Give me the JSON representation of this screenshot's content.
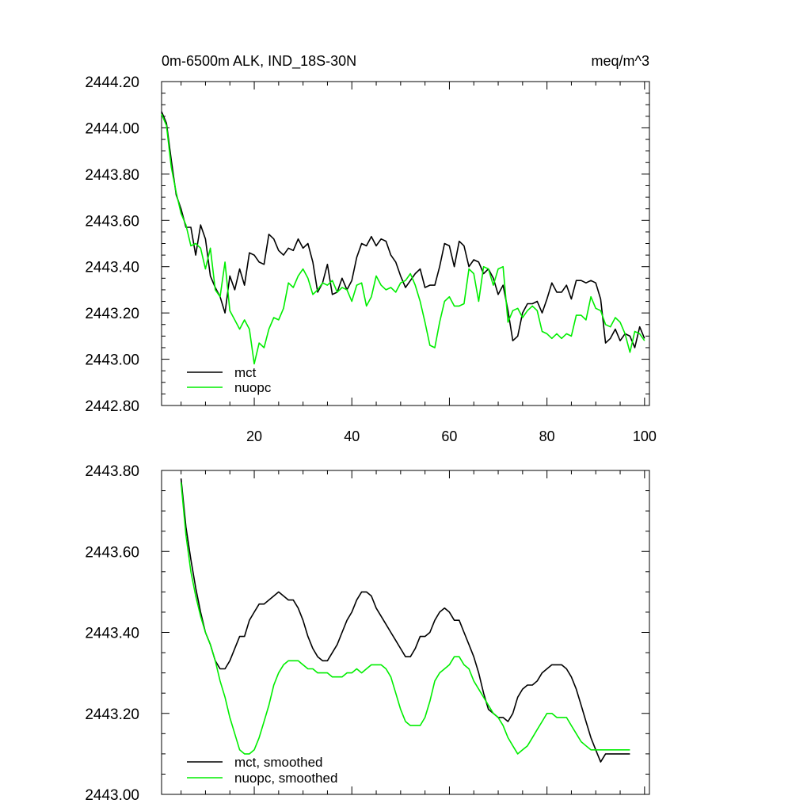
{
  "chart_data": [
    {
      "type": "line",
      "title_left": "0m-6500m ALK, IND_18S-30N",
      "title_right": "meq/m^3",
      "xlim": [
        1,
        101
      ],
      "ylim": [
        2442.8,
        2444.2
      ],
      "x_ticks": [
        20,
        40,
        60,
        80,
        100
      ],
      "y_ticks": [
        2442.8,
        2443.0,
        2443.2,
        2443.4,
        2443.6,
        2443.8,
        2444.0,
        2444.2
      ],
      "y_tick_labels": [
        "2442.80",
        "2443.00",
        "2443.20",
        "2443.40",
        "2443.60",
        "2443.80",
        "2444.00",
        "2444.20"
      ],
      "show_x_tick_labels": true,
      "legend_position": "bottom-left",
      "series": [
        {
          "name": "mct",
          "color": "#000000",
          "values": [
            2444.07,
            2444.02,
            2443.86,
            2443.71,
            2443.65,
            2443.57,
            2443.57,
            2443.45,
            2443.58,
            2443.52,
            2443.36,
            2443.31,
            2443.27,
            2443.2,
            2443.36,
            2443.3,
            2443.39,
            2443.32,
            2443.46,
            2443.45,
            2443.42,
            2443.41,
            2443.54,
            2443.52,
            2443.47,
            2443.45,
            2443.48,
            2443.47,
            2443.52,
            2443.48,
            2443.5,
            2443.42,
            2443.29,
            2443.33,
            2443.41,
            2443.28,
            2443.29,
            2443.35,
            2443.3,
            2443.34,
            2443.44,
            2443.5,
            2443.49,
            2443.53,
            2443.49,
            2443.52,
            2443.51,
            2443.45,
            2443.42,
            2443.36,
            2443.31,
            2443.34,
            2443.37,
            2443.39,
            2443.31,
            2443.32,
            2443.32,
            2443.4,
            2443.5,
            2443.49,
            2443.4,
            2443.51,
            2443.49,
            2443.4,
            2443.43,
            2443.42,
            2443.37,
            2443.39,
            2443.35,
            2443.28,
            2443.32,
            2443.21,
            2443.08,
            2443.1,
            2443.2,
            2443.24,
            2443.24,
            2443.25,
            2443.2,
            2443.26,
            2443.33,
            2443.29,
            2443.29,
            2443.32,
            2443.26,
            2443.34,
            2443.34,
            2443.33,
            2443.34,
            2443.33,
            2443.26,
            2443.07,
            2443.09,
            2443.13,
            2443.08,
            2443.11,
            2443.1,
            2443.05,
            2443.14,
            2443.09
          ]
        },
        {
          "name": "nuopc",
          "color": "#00ee00",
          "values": [
            2444.06,
            2444.01,
            2443.83,
            2443.72,
            2443.63,
            2443.58,
            2443.49,
            2443.5,
            2443.48,
            2443.39,
            2443.48,
            2443.3,
            2443.27,
            2443.42,
            2443.21,
            2443.17,
            2443.13,
            2443.17,
            2443.13,
            2442.98,
            2443.07,
            2443.05,
            2443.13,
            2443.18,
            2443.17,
            2443.22,
            2443.33,
            2443.31,
            2443.36,
            2443.39,
            2443.35,
            2443.28,
            2443.3,
            2443.33,
            2443.32,
            2443.34,
            2443.29,
            2443.31,
            2443.3,
            2443.25,
            2443.32,
            2443.33,
            2443.23,
            2443.27,
            2443.36,
            2443.32,
            2443.3,
            2443.31,
            2443.29,
            2443.33,
            2443.34,
            2443.37,
            2443.32,
            2443.25,
            2443.16,
            2443.06,
            2443.05,
            2443.16,
            2443.25,
            2443.27,
            2443.23,
            2443.23,
            2443.24,
            2443.39,
            2443.37,
            2443.25,
            2443.4,
            2443.39,
            2443.32,
            2443.39,
            2443.4,
            2443.16,
            2443.21,
            2443.22,
            2443.18,
            2443.21,
            2443.23,
            2443.21,
            2443.12,
            2443.11,
            2443.09,
            2443.11,
            2443.09,
            2443.11,
            2443.1,
            2443.19,
            2443.19,
            2443.17,
            2443.27,
            2443.22,
            2443.21,
            2443.15,
            2443.14,
            2443.18,
            2443.16,
            2443.11,
            2443.03,
            2443.12,
            2443.11,
            2443.08
          ]
        }
      ],
      "legend": [
        {
          "label": "mct",
          "color": "#000000"
        },
        {
          "label": "nuopc",
          "color": "#00ee00"
        }
      ]
    },
    {
      "type": "line",
      "title_left": "",
      "title_right": "",
      "xlim": [
        1,
        101
      ],
      "ylim": [
        2443.0,
        2443.8
      ],
      "x_ticks": [
        20,
        40,
        60,
        80,
        100
      ],
      "y_ticks": [
        2443.0,
        2443.2,
        2443.4,
        2443.6,
        2443.8
      ],
      "y_tick_labels": [
        "2443.00",
        "2443.20",
        "2443.40",
        "2443.60",
        "2443.80"
      ],
      "show_x_tick_labels": false,
      "legend_position": "bottom-left",
      "series": [
        {
          "name": "mct, smoothed",
          "color": "#000000",
          "x": [
            5,
            6,
            7,
            8,
            9,
            10,
            11,
            12,
            13,
            14,
            15,
            16,
            17,
            18,
            19,
            20,
            21,
            22,
            23,
            24,
            25,
            26,
            27,
            28,
            29,
            30,
            31,
            32,
            33,
            34,
            35,
            36,
            37,
            38,
            39,
            40,
            41,
            42,
            43,
            44,
            45,
            46,
            47,
            48,
            49,
            50,
            51,
            52,
            53,
            54,
            55,
            56,
            57,
            58,
            59,
            60,
            61,
            62,
            63,
            64,
            65,
            66,
            67,
            68,
            69,
            70,
            71,
            72,
            73,
            74,
            75,
            76,
            77,
            78,
            79,
            80,
            81,
            82,
            83,
            84,
            85,
            86,
            87,
            88,
            89,
            90,
            91,
            92,
            93,
            94,
            95,
            96,
            97
          ],
          "values": [
            2443.78,
            2443.66,
            2443.58,
            2443.51,
            2443.45,
            2443.4,
            2443.37,
            2443.33,
            2443.31,
            2443.31,
            2443.33,
            2443.36,
            2443.39,
            2443.39,
            2443.43,
            2443.45,
            2443.47,
            2443.47,
            2443.48,
            2443.49,
            2443.5,
            2443.49,
            2443.48,
            2443.48,
            2443.46,
            2443.43,
            2443.39,
            2443.36,
            2443.34,
            2443.33,
            2443.33,
            2443.35,
            2443.37,
            2443.4,
            2443.43,
            2443.45,
            2443.48,
            2443.5,
            2443.5,
            2443.49,
            2443.46,
            2443.44,
            2443.42,
            2443.4,
            2443.38,
            2443.36,
            2443.34,
            2443.34,
            2443.36,
            2443.39,
            2443.39,
            2443.4,
            2443.43,
            2443.45,
            2443.46,
            2443.45,
            2443.43,
            2443.43,
            2443.4,
            2443.37,
            2443.34,
            2443.3,
            2443.25,
            2443.21,
            2443.2,
            2443.19,
            2443.19,
            2443.18,
            2443.2,
            2443.24,
            2443.26,
            2443.27,
            2443.27,
            2443.28,
            2443.3,
            2443.31,
            2443.32,
            2443.32,
            2443.32,
            2443.31,
            2443.29,
            2443.26,
            2443.22,
            2443.18,
            2443.14,
            2443.11,
            2443.08,
            2443.1,
            2443.1,
            2443.1,
            2443.1,
            2443.1,
            2443.1
          ]
        },
        {
          "name": "nuopc, smoothed",
          "color": "#00ee00",
          "x": [
            5,
            6,
            7,
            8,
            9,
            10,
            11,
            12,
            13,
            14,
            15,
            16,
            17,
            18,
            19,
            20,
            21,
            22,
            23,
            24,
            25,
            26,
            27,
            28,
            29,
            30,
            31,
            32,
            33,
            34,
            35,
            36,
            37,
            38,
            39,
            40,
            41,
            42,
            43,
            44,
            45,
            46,
            47,
            48,
            49,
            50,
            51,
            52,
            53,
            54,
            55,
            56,
            57,
            58,
            59,
            60,
            61,
            62,
            63,
            64,
            65,
            66,
            67,
            68,
            69,
            70,
            71,
            72,
            73,
            74,
            75,
            76,
            77,
            78,
            79,
            80,
            81,
            82,
            83,
            84,
            85,
            86,
            87,
            88,
            89,
            90,
            91,
            92,
            93,
            94,
            95,
            96,
            97
          ],
          "values": [
            2443.77,
            2443.64,
            2443.55,
            2443.49,
            2443.44,
            2443.4,
            2443.37,
            2443.33,
            2443.28,
            2443.24,
            2443.19,
            2443.15,
            2443.11,
            2443.1,
            2443.1,
            2443.11,
            2443.14,
            2443.18,
            2443.22,
            2443.27,
            2443.3,
            2443.32,
            2443.33,
            2443.33,
            2443.33,
            2443.32,
            2443.31,
            2443.31,
            2443.3,
            2443.3,
            2443.3,
            2443.29,
            2443.29,
            2443.29,
            2443.3,
            2443.3,
            2443.31,
            2443.3,
            2443.31,
            2443.32,
            2443.32,
            2443.32,
            2443.31,
            2443.29,
            2443.25,
            2443.21,
            2443.18,
            2443.17,
            2443.17,
            2443.17,
            2443.19,
            2443.23,
            2443.28,
            2443.3,
            2443.31,
            2443.32,
            2443.34,
            2443.34,
            2443.32,
            2443.31,
            2443.28,
            2443.26,
            2443.24,
            2443.22,
            2443.2,
            2443.19,
            2443.17,
            2443.14,
            2443.12,
            2443.1,
            2443.11,
            2443.12,
            2443.14,
            2443.16,
            2443.18,
            2443.2,
            2443.2,
            2443.19,
            2443.19,
            2443.19,
            2443.17,
            2443.15,
            2443.13,
            2443.12,
            2443.11,
            2443.11,
            2443.11,
            2443.11,
            2443.11,
            2443.11,
            2443.11,
            2443.11,
            2443.11
          ]
        }
      ],
      "legend": [
        {
          "label": "mct, smoothed",
          "color": "#000000"
        },
        {
          "label": "nuopc, smoothed",
          "color": "#00ee00"
        }
      ]
    }
  ]
}
